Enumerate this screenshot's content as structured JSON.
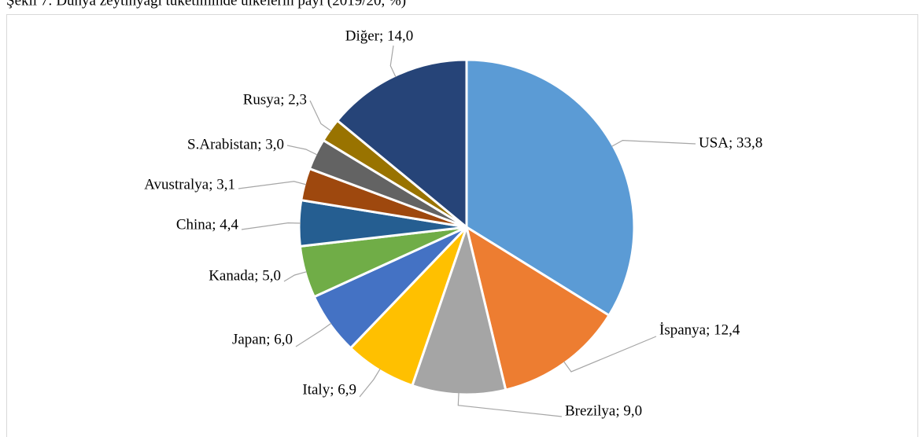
{
  "chart_data": {
    "type": "pie",
    "title": "Şekil 7: Dünya zeytinyağı tüketiminde ülkelerin payı (2019/20, %)",
    "categories": [
      "USA",
      "İspanya",
      "Brezilya",
      "Italy",
      "Japan",
      "Kanada",
      "China",
      "Avustralya",
      "S.Arabistan",
      "Rusya",
      "Diğer"
    ],
    "values": [
      33.8,
      12.4,
      9.0,
      6.9,
      6.0,
      5.0,
      4.4,
      3.1,
      3.0,
      2.3,
      14.0
    ],
    "value_labels": [
      "USA; 33,8",
      "İspanya; 12,4",
      "Brezilya; 9,0",
      "Italy; 6,9",
      "Japan; 6,0",
      "Kanada; 5,0",
      "China; 4,4",
      "Avustralya; 3,1",
      "S.Arabistan; 3,0",
      "Rusya; 2,3",
      "Diğer; 14,0"
    ],
    "colors": [
      "#5b9bd5",
      "#ed7d31",
      "#a5a5a5",
      "#ffc000",
      "#4472c4",
      "#70ad47",
      "#255e91",
      "#9e480e",
      "#636363",
      "#997300",
      "#264478"
    ]
  }
}
